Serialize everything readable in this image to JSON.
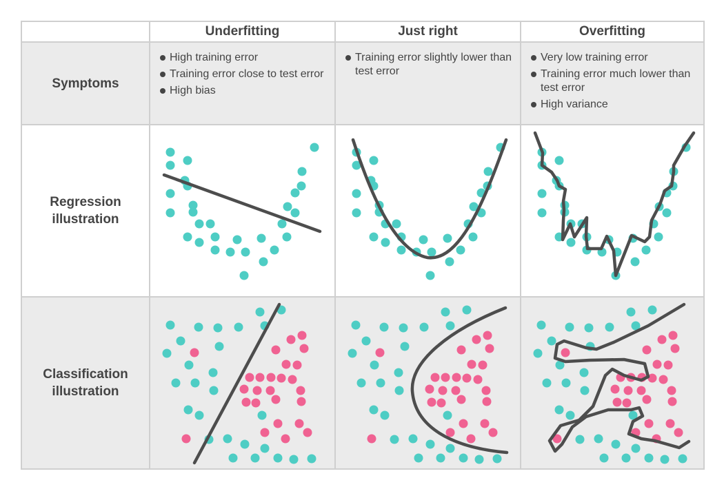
{
  "columns": [
    "Underfitting",
    "Just right",
    "Overfitting"
  ],
  "rows": {
    "symptoms": "Symptoms",
    "regression": [
      "Regression",
      "illustration"
    ],
    "classification": [
      "Classification",
      "illustration"
    ]
  },
  "symptoms": {
    "underfitting": [
      "High training error",
      "Training error close to test error",
      "High bias"
    ],
    "just_right": [
      "Training error slightly lower than test error"
    ],
    "overfitting": [
      "Very low training error",
      "Training error much lower than test error",
      "High variance"
    ]
  },
  "colors": {
    "class_a": "#4ecdc4",
    "class_b": "#f06292",
    "curve": "#4d4d4d",
    "border": "#cfcfcf",
    "shaded": "#ebebeb"
  }
}
